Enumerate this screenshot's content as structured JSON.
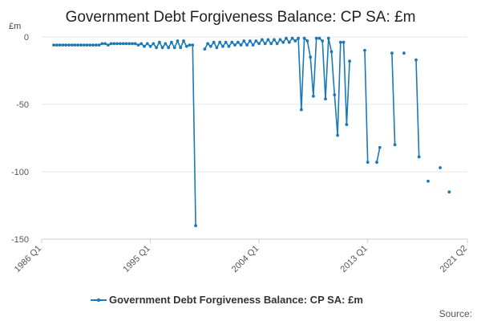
{
  "chart_data": {
    "type": "line",
    "title": "Government Debt Forgiveness Balance: CP SA: £m",
    "ylabel": "£m",
    "xlabel": "",
    "ylim": [
      -150,
      0
    ],
    "yticks": [
      0,
      -50,
      -100,
      -150
    ],
    "xlim": [
      1986.0,
      2021.25
    ],
    "xticks": [
      {
        "value": 1986.0,
        "label": "1986 Q1"
      },
      {
        "value": 1995.0,
        "label": "1995 Q1"
      },
      {
        "value": 2004.0,
        "label": "2004 Q1"
      },
      {
        "value": 2013.0,
        "label": "2013 Q1"
      },
      {
        "value": 2021.25,
        "label": "2021 Q2"
      }
    ],
    "grid": true,
    "legend_position": "bottom",
    "source_label": "Source:",
    "color": "#1a7ab5",
    "series": [
      {
        "name": "Government Debt Forgiveness Balance: CP SA: £m",
        "segments": [
          [
            [
              1987.0,
              -6
            ],
            [
              1987.25,
              -6
            ],
            [
              1987.5,
              -6
            ],
            [
              1987.75,
              -6
            ],
            [
              1988.0,
              -6
            ],
            [
              1988.25,
              -6
            ],
            [
              1988.5,
              -6
            ],
            [
              1988.75,
              -6
            ],
            [
              1989.0,
              -6
            ],
            [
              1989.25,
              -6
            ],
            [
              1989.5,
              -6
            ],
            [
              1989.75,
              -6
            ],
            [
              1990.0,
              -6
            ],
            [
              1990.25,
              -6
            ],
            [
              1990.5,
              -6
            ],
            [
              1990.75,
              -6
            ],
            [
              1991.0,
              -5
            ],
            [
              1991.25,
              -5
            ],
            [
              1991.5,
              -6
            ],
            [
              1991.75,
              -5
            ],
            [
              1992.0,
              -5
            ],
            [
              1992.25,
              -5
            ],
            [
              1992.5,
              -5
            ],
            [
              1992.75,
              -5
            ],
            [
              1993.0,
              -5
            ],
            [
              1993.25,
              -5
            ],
            [
              1993.5,
              -5
            ],
            [
              1993.75,
              -5
            ],
            [
              1994.0,
              -6
            ],
            [
              1994.25,
              -5
            ],
            [
              1994.5,
              -7
            ],
            [
              1994.75,
              -5
            ],
            [
              1995.0,
              -7
            ],
            [
              1995.25,
              -5
            ],
            [
              1995.5,
              -8
            ],
            [
              1995.75,
              -4
            ],
            [
              1996.0,
              -8
            ],
            [
              1996.25,
              -5
            ],
            [
              1996.5,
              -8
            ],
            [
              1996.75,
              -4
            ],
            [
              1997.0,
              -8
            ],
            [
              1997.25,
              -3
            ],
            [
              1997.5,
              -8
            ],
            [
              1997.75,
              -3
            ],
            [
              1998.0,
              -7
            ],
            [
              1998.25,
              -6
            ],
            [
              1998.5,
              -6
            ],
            [
              1998.75,
              -140
            ]
          ],
          [
            [
              1999.5,
              -9
            ],
            [
              1999.75,
              -5
            ],
            [
              2000.0,
              -7
            ],
            [
              2000.25,
              -4
            ],
            [
              2000.5,
              -8
            ],
            [
              2000.75,
              -4
            ],
            [
              2001.0,
              -7
            ],
            [
              2001.25,
              -4
            ],
            [
              2001.5,
              -7
            ],
            [
              2001.75,
              -4
            ],
            [
              2002.0,
              -6
            ],
            [
              2002.25,
              -4
            ],
            [
              2002.5,
              -6
            ],
            [
              2002.75,
              -3
            ],
            [
              2003.0,
              -6
            ],
            [
              2003.25,
              -3
            ],
            [
              2003.5,
              -6
            ],
            [
              2003.75,
              -3
            ],
            [
              2004.0,
              -5
            ],
            [
              2004.25,
              -2
            ],
            [
              2004.5,
              -5
            ],
            [
              2004.75,
              -2
            ],
            [
              2005.0,
              -5
            ],
            [
              2005.25,
              -2
            ],
            [
              2005.5,
              -5
            ],
            [
              2005.75,
              -2
            ],
            [
              2006.0,
              -4
            ],
            [
              2006.25,
              -1
            ],
            [
              2006.5,
              -4
            ],
            [
              2006.75,
              -1
            ],
            [
              2007.0,
              -3
            ],
            [
              2007.25,
              -1
            ],
            [
              2007.5,
              -54
            ],
            [
              2007.75,
              -1
            ],
            [
              2008.0,
              -3
            ],
            [
              2008.25,
              -15
            ],
            [
              2008.5,
              -44
            ],
            [
              2008.75,
              -1
            ],
            [
              2009.0,
              -1
            ],
            [
              2009.25,
              -3
            ],
            [
              2009.5,
              -46
            ],
            [
              2009.75,
              -1
            ],
            [
              2010.0,
              -11
            ],
            [
              2010.25,
              -43
            ],
            [
              2010.5,
              -73
            ],
            [
              2010.75,
              -4
            ],
            [
              2011.0,
              -4
            ],
            [
              2011.25,
              -65
            ],
            [
              2011.5,
              -18
            ]
          ],
          [
            [
              2012.75,
              -10
            ],
            [
              2013.0,
              -93
            ]
          ],
          [
            [
              2013.75,
              -93
            ],
            [
              2014.0,
              -82
            ]
          ],
          [
            [
              2015.0,
              -12
            ],
            [
              2015.25,
              -80
            ]
          ],
          [
            [
              2016.0,
              -12
            ]
          ],
          [
            [
              2017.0,
              -17
            ],
            [
              2017.25,
              -89
            ]
          ],
          [
            [
              2018.0,
              -107
            ]
          ],
          [
            [
              2019.0,
              -97
            ]
          ],
          [
            [
              2019.75,
              -115
            ]
          ]
        ]
      }
    ]
  }
}
